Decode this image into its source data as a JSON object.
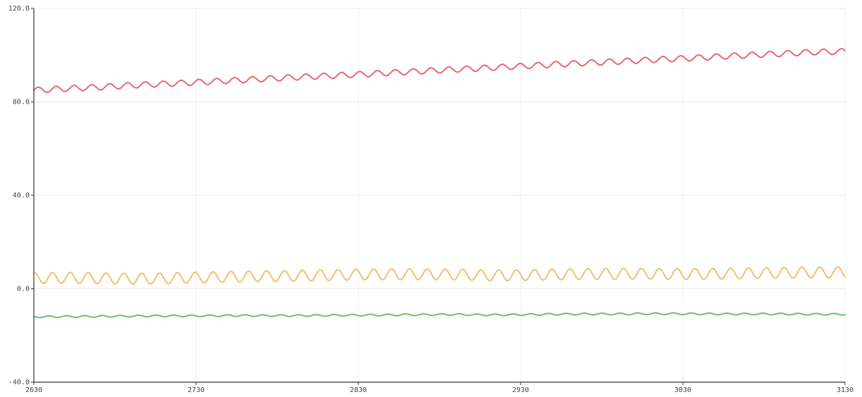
{
  "chart_data": {
    "type": "line",
    "title": "",
    "xlabel": "",
    "ylabel": "",
    "xlim": [
      2630,
      3130
    ],
    "ylim": [
      -40,
      120
    ],
    "x_ticks": [
      2630,
      2730,
      2830,
      2930,
      3030,
      3130
    ],
    "x_tick_labels": [
      "2630",
      "2730",
      "2830",
      "2930",
      "3030",
      "3130"
    ],
    "y_ticks": [
      -40,
      0,
      40,
      80,
      120
    ],
    "y_tick_labels": [
      "-40.0",
      "0.0",
      "40.0",
      "80.0",
      "120.0"
    ],
    "grid": true,
    "legend": "none",
    "series": [
      {
        "color": "#e8696b",
        "x": [
          2630,
          2650,
          2670,
          2690,
          2710,
          2730,
          2750,
          2770,
          2790,
          2810,
          2830,
          2850,
          2870,
          2890,
          2910,
          2930,
          2950,
          2970,
          2990,
          3010,
          3030,
          3050,
          3070,
          3090,
          3110,
          3130
        ],
        "values": [
          85,
          85.7,
          86.3,
          87.1,
          87.7,
          88.4,
          89.1,
          89.8,
          90.5,
          91.1,
          91.8,
          92.5,
          93.2,
          93.9,
          94.6,
          95.3,
          96.0,
          96.7,
          97.3,
          98.0,
          98.6,
          99.3,
          100.0,
          100.6,
          101.3,
          101.6
        ],
        "wave_amplitude": 1.2,
        "wave_period": 11
      },
      {
        "color": "#f5be6e",
        "x": [
          2630,
          2650,
          2670,
          2690,
          2710,
          2730,
          2750,
          2770,
          2790,
          2810,
          2830,
          2850,
          2870,
          2890,
          2910,
          2930,
          2950,
          2970,
          2990,
          3010,
          3030,
          3050,
          3070,
          3090,
          3110,
          3130
        ],
        "values": [
          4.5,
          4.7,
          4.5,
          4.3,
          4.4,
          4.8,
          5.1,
          5.4,
          5.5,
          5.8,
          6.1,
          6.2,
          6.2,
          6.1,
          5.7,
          5.8,
          6.1,
          6.3,
          6.4,
          6.4,
          6.3,
          6.4,
          6.6,
          6.8,
          7.0,
          7.0
        ],
        "wave_amplitude": 2.3,
        "wave_period": 11
      },
      {
        "color": "#6cbf6c",
        "x": [
          2630,
          2650,
          2670,
          2690,
          2710,
          2730,
          2750,
          2770,
          2790,
          2810,
          2830,
          2850,
          2870,
          2890,
          2910,
          2930,
          2950,
          2970,
          2990,
          3010,
          3030,
          3050,
          3070,
          3090,
          3110,
          3130
        ],
        "values": [
          -12.0,
          -11.9,
          -11.8,
          -11.7,
          -11.6,
          -11.6,
          -11.5,
          -11.5,
          -11.5,
          -11.4,
          -11.3,
          -11.2,
          -11.1,
          -11.0,
          -11.2,
          -11.1,
          -10.9,
          -10.8,
          -10.8,
          -10.7,
          -10.7,
          -10.8,
          -10.8,
          -10.8,
          -10.9,
          -10.9
        ],
        "wave_amplitude": 0.35,
        "wave_period": 11
      }
    ]
  }
}
